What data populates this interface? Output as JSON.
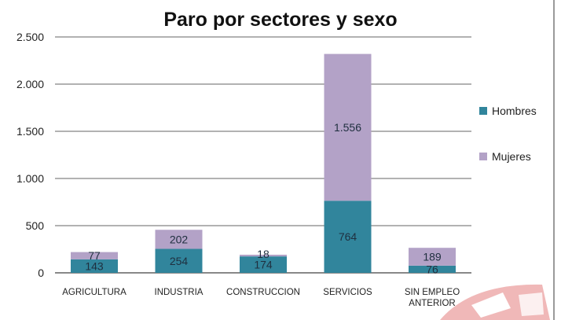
{
  "chart_data": {
    "type": "bar",
    "stacked": true,
    "title": "Paro por sectores y sexo",
    "categories": [
      [
        "AGRICULTURA"
      ],
      [
        "INDUSTRIA"
      ],
      [
        "CONSTRUCCION"
      ],
      [
        "SERVICIOS"
      ],
      [
        "SIN EMPLEO",
        "ANTERIOR"
      ]
    ],
    "series": [
      {
        "name": "Hombres",
        "color": "#31859c",
        "values": [
          143,
          254,
          174,
          764,
          76
        ],
        "labels": [
          "143",
          "254",
          "174",
          "764",
          "76"
        ]
      },
      {
        "name": "Mujeres",
        "color": "#b3a2c7",
        "values": [
          77,
          202,
          18,
          1556,
          189
        ],
        "labels": [
          "77",
          "202",
          "18",
          "1.556",
          "189"
        ]
      }
    ],
    "ylim": [
      0,
      2500
    ],
    "yticks": [
      0,
      500,
      1000,
      1500,
      2000,
      2500
    ],
    "ytick_labels": [
      "0",
      "500",
      "1.000",
      "1.500",
      "2.000",
      "2.500"
    ],
    "grid": true,
    "legend_position": "right"
  }
}
